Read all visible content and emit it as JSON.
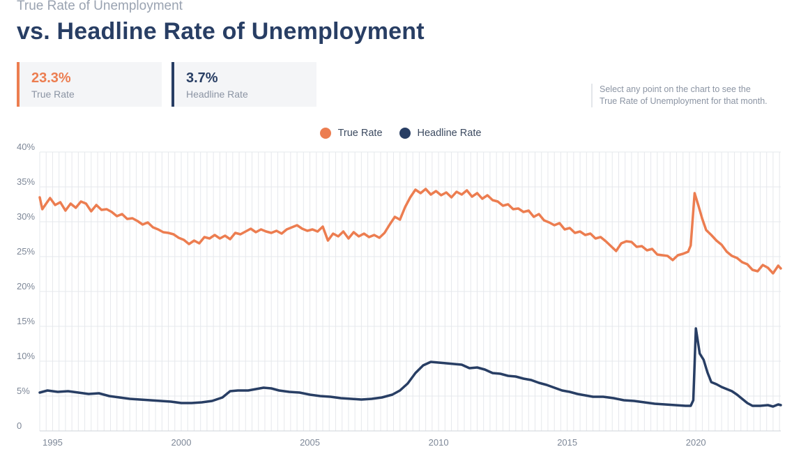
{
  "header": {
    "subtitle": "True Rate of Unemployment",
    "title": "vs. Headline Rate of Unemployment"
  },
  "stats": {
    "true_rate": {
      "value": "23.3%",
      "label": "True Rate"
    },
    "headline_rate": {
      "value": "3.7%",
      "label": "Headline Rate"
    }
  },
  "hint": {
    "line1": "Select any point on the chart to see the",
    "line2": "True Rate of Unemployment for that month."
  },
  "colors": {
    "true_rate": "#ec7d50",
    "headline_rate": "#283e64",
    "grid": "#e6e8ec"
  },
  "chart_data": {
    "type": "line",
    "title": "",
    "xlabel": "",
    "ylabel": "",
    "xlim": [
      1994.5,
      2023.3
    ],
    "ylim": [
      0,
      40
    ],
    "grid": true,
    "legend_position": "top-center",
    "x_ticks": [
      1995,
      2000,
      2005,
      2010,
      2015,
      2020
    ],
    "y_ticks": [
      {
        "value": 0,
        "label": "0"
      },
      {
        "value": 5,
        "label": "5%"
      },
      {
        "value": 10,
        "label": "10%"
      },
      {
        "value": 15,
        "label": "15%"
      },
      {
        "value": 20,
        "label": "20%"
      },
      {
        "value": 25,
        "label": "25%"
      },
      {
        "value": 30,
        "label": "30%"
      },
      {
        "value": 35,
        "label": "35%"
      },
      {
        "value": 40,
        "label": "40%"
      }
    ],
    "series": [
      {
        "name": "True Rate",
        "color_key": "true_rate",
        "points": [
          [
            1994.5,
            33.5
          ],
          [
            1994.6,
            31.8
          ],
          [
            1994.75,
            32.6
          ],
          [
            1994.9,
            33.4
          ],
          [
            1995.1,
            32.4
          ],
          [
            1995.3,
            32.8
          ],
          [
            1995.5,
            31.6
          ],
          [
            1995.7,
            32.6
          ],
          [
            1995.9,
            32.0
          ],
          [
            1996.1,
            32.9
          ],
          [
            1996.3,
            32.6
          ],
          [
            1996.5,
            31.5
          ],
          [
            1996.7,
            32.4
          ],
          [
            1996.9,
            31.7
          ],
          [
            1997.1,
            31.8
          ],
          [
            1997.3,
            31.4
          ],
          [
            1997.5,
            30.8
          ],
          [
            1997.7,
            31.1
          ],
          [
            1997.9,
            30.4
          ],
          [
            1998.1,
            30.5
          ],
          [
            1998.3,
            30.1
          ],
          [
            1998.5,
            29.6
          ],
          [
            1998.7,
            29.9
          ],
          [
            1998.9,
            29.2
          ],
          [
            1999.1,
            28.9
          ],
          [
            1999.3,
            28.5
          ],
          [
            1999.5,
            28.4
          ],
          [
            1999.7,
            28.2
          ],
          [
            1999.9,
            27.7
          ],
          [
            2000.1,
            27.4
          ],
          [
            2000.3,
            26.8
          ],
          [
            2000.5,
            27.3
          ],
          [
            2000.7,
            26.9
          ],
          [
            2000.9,
            27.8
          ],
          [
            2001.1,
            27.6
          ],
          [
            2001.3,
            28.1
          ],
          [
            2001.5,
            27.6
          ],
          [
            2001.7,
            28.0
          ],
          [
            2001.9,
            27.5
          ],
          [
            2002.1,
            28.4
          ],
          [
            2002.3,
            28.2
          ],
          [
            2002.5,
            28.6
          ],
          [
            2002.7,
            29.0
          ],
          [
            2002.9,
            28.5
          ],
          [
            2003.1,
            28.9
          ],
          [
            2003.3,
            28.6
          ],
          [
            2003.5,
            28.4
          ],
          [
            2003.7,
            28.7
          ],
          [
            2003.9,
            28.3
          ],
          [
            2004.1,
            28.9
          ],
          [
            2004.3,
            29.2
          ],
          [
            2004.5,
            29.5
          ],
          [
            2004.7,
            29.0
          ],
          [
            2004.9,
            28.7
          ],
          [
            2005.1,
            28.9
          ],
          [
            2005.3,
            28.6
          ],
          [
            2005.5,
            29.3
          ],
          [
            2005.7,
            27.3
          ],
          [
            2005.9,
            28.3
          ],
          [
            2006.1,
            27.9
          ],
          [
            2006.3,
            28.6
          ],
          [
            2006.5,
            27.6
          ],
          [
            2006.7,
            28.5
          ],
          [
            2006.9,
            27.9
          ],
          [
            2007.1,
            28.3
          ],
          [
            2007.3,
            27.8
          ],
          [
            2007.5,
            28.1
          ],
          [
            2007.7,
            27.7
          ],
          [
            2007.9,
            28.4
          ],
          [
            2008.1,
            29.6
          ],
          [
            2008.3,
            30.7
          ],
          [
            2008.5,
            30.3
          ],
          [
            2008.7,
            32.1
          ],
          [
            2008.9,
            33.5
          ],
          [
            2009.1,
            34.6
          ],
          [
            2009.3,
            34.1
          ],
          [
            2009.5,
            34.7
          ],
          [
            2009.7,
            33.9
          ],
          [
            2009.9,
            34.4
          ],
          [
            2010.1,
            33.8
          ],
          [
            2010.3,
            34.2
          ],
          [
            2010.5,
            33.5
          ],
          [
            2010.7,
            34.3
          ],
          [
            2010.9,
            33.9
          ],
          [
            2011.1,
            34.5
          ],
          [
            2011.3,
            33.6
          ],
          [
            2011.5,
            34.1
          ],
          [
            2011.7,
            33.3
          ],
          [
            2011.9,
            33.8
          ],
          [
            2012.1,
            33.1
          ],
          [
            2012.3,
            32.9
          ],
          [
            2012.5,
            32.3
          ],
          [
            2012.7,
            32.5
          ],
          [
            2012.9,
            31.8
          ],
          [
            2013.1,
            31.9
          ],
          [
            2013.3,
            31.4
          ],
          [
            2013.5,
            31.6
          ],
          [
            2013.7,
            30.7
          ],
          [
            2013.9,
            31.1
          ],
          [
            2014.1,
            30.2
          ],
          [
            2014.3,
            29.9
          ],
          [
            2014.5,
            29.5
          ],
          [
            2014.7,
            29.8
          ],
          [
            2014.9,
            28.9
          ],
          [
            2015.1,
            29.1
          ],
          [
            2015.3,
            28.4
          ],
          [
            2015.5,
            28.6
          ],
          [
            2015.7,
            28.1
          ],
          [
            2015.9,
            28.3
          ],
          [
            2016.1,
            27.6
          ],
          [
            2016.3,
            27.8
          ],
          [
            2016.5,
            27.2
          ],
          [
            2016.7,
            26.5
          ],
          [
            2016.9,
            25.8
          ],
          [
            2017.1,
            26.9
          ],
          [
            2017.3,
            27.2
          ],
          [
            2017.5,
            27.1
          ],
          [
            2017.7,
            26.4
          ],
          [
            2017.9,
            26.5
          ],
          [
            2018.1,
            25.9
          ],
          [
            2018.3,
            26.1
          ],
          [
            2018.5,
            25.3
          ],
          [
            2018.7,
            25.2
          ],
          [
            2018.9,
            25.1
          ],
          [
            2019.1,
            24.5
          ],
          [
            2019.3,
            25.2
          ],
          [
            2019.5,
            25.4
          ],
          [
            2019.7,
            25.7
          ],
          [
            2019.8,
            26.6
          ],
          [
            2019.95,
            34.1
          ],
          [
            2020.1,
            32.3
          ],
          [
            2020.25,
            30.4
          ],
          [
            2020.4,
            28.8
          ],
          [
            2020.6,
            28.1
          ],
          [
            2020.8,
            27.3
          ],
          [
            2021.0,
            26.7
          ],
          [
            2021.2,
            25.7
          ],
          [
            2021.4,
            25.1
          ],
          [
            2021.6,
            24.8
          ],
          [
            2021.8,
            24.2
          ],
          [
            2022.0,
            23.9
          ],
          [
            2022.2,
            23.1
          ],
          [
            2022.4,
            22.9
          ],
          [
            2022.6,
            23.8
          ],
          [
            2022.8,
            23.4
          ],
          [
            2023.0,
            22.6
          ],
          [
            2023.2,
            23.7
          ],
          [
            2023.3,
            23.3
          ]
        ]
      },
      {
        "name": "Headline Rate",
        "color_key": "headline_rate",
        "points": [
          [
            1994.5,
            5.5
          ],
          [
            1994.8,
            5.8
          ],
          [
            1995.2,
            5.6
          ],
          [
            1995.6,
            5.7
          ],
          [
            1996.0,
            5.5
          ],
          [
            1996.4,
            5.3
          ],
          [
            1996.8,
            5.4
          ],
          [
            1997.2,
            5.0
          ],
          [
            1997.6,
            4.8
          ],
          [
            1998.0,
            4.6
          ],
          [
            1998.4,
            4.5
          ],
          [
            1998.8,
            4.4
          ],
          [
            1999.2,
            4.3
          ],
          [
            1999.6,
            4.2
          ],
          [
            2000.0,
            4.0
          ],
          [
            2000.4,
            4.0
          ],
          [
            2000.8,
            4.1
          ],
          [
            2001.2,
            4.3
          ],
          [
            2001.6,
            4.8
          ],
          [
            2001.9,
            5.7
          ],
          [
            2002.2,
            5.8
          ],
          [
            2002.6,
            5.8
          ],
          [
            2002.9,
            6.0
          ],
          [
            2003.2,
            6.2
          ],
          [
            2003.5,
            6.1
          ],
          [
            2003.8,
            5.8
          ],
          [
            2004.2,
            5.6
          ],
          [
            2004.6,
            5.5
          ],
          [
            2005.0,
            5.2
          ],
          [
            2005.4,
            5.0
          ],
          [
            2005.8,
            4.9
          ],
          [
            2006.2,
            4.7
          ],
          [
            2006.6,
            4.6
          ],
          [
            2007.0,
            4.5
          ],
          [
            2007.4,
            4.6
          ],
          [
            2007.8,
            4.8
          ],
          [
            2008.2,
            5.2
          ],
          [
            2008.5,
            5.8
          ],
          [
            2008.8,
            6.8
          ],
          [
            2009.1,
            8.3
          ],
          [
            2009.4,
            9.4
          ],
          [
            2009.7,
            9.9
          ],
          [
            2010.0,
            9.8
          ],
          [
            2010.3,
            9.7
          ],
          [
            2010.6,
            9.6
          ],
          [
            2010.9,
            9.5
          ],
          [
            2011.2,
            9.0
          ],
          [
            2011.5,
            9.1
          ],
          [
            2011.8,
            8.8
          ],
          [
            2012.1,
            8.3
          ],
          [
            2012.4,
            8.2
          ],
          [
            2012.7,
            7.9
          ],
          [
            2013.0,
            7.8
          ],
          [
            2013.3,
            7.5
          ],
          [
            2013.6,
            7.3
          ],
          [
            2013.9,
            6.9
          ],
          [
            2014.2,
            6.6
          ],
          [
            2014.5,
            6.2
          ],
          [
            2014.8,
            5.8
          ],
          [
            2015.1,
            5.6
          ],
          [
            2015.4,
            5.3
          ],
          [
            2015.7,
            5.1
          ],
          [
            2016.0,
            4.9
          ],
          [
            2016.4,
            4.9
          ],
          [
            2016.8,
            4.7
          ],
          [
            2017.2,
            4.4
          ],
          [
            2017.6,
            4.3
          ],
          [
            2018.0,
            4.1
          ],
          [
            2018.4,
            3.9
          ],
          [
            2018.8,
            3.8
          ],
          [
            2019.2,
            3.7
          ],
          [
            2019.6,
            3.6
          ],
          [
            2019.8,
            3.6
          ],
          [
            2019.9,
            4.4
          ],
          [
            2020.0,
            14.7
          ],
          [
            2020.15,
            11.1
          ],
          [
            2020.3,
            10.2
          ],
          [
            2020.45,
            8.4
          ],
          [
            2020.6,
            7.0
          ],
          [
            2020.8,
            6.7
          ],
          [
            2021.0,
            6.3
          ],
          [
            2021.2,
            6.0
          ],
          [
            2021.4,
            5.7
          ],
          [
            2021.6,
            5.2
          ],
          [
            2021.8,
            4.6
          ],
          [
            2022.0,
            4.0
          ],
          [
            2022.2,
            3.6
          ],
          [
            2022.5,
            3.6
          ],
          [
            2022.8,
            3.7
          ],
          [
            2023.0,
            3.5
          ],
          [
            2023.2,
            3.8
          ],
          [
            2023.3,
            3.7
          ]
        ]
      }
    ]
  }
}
